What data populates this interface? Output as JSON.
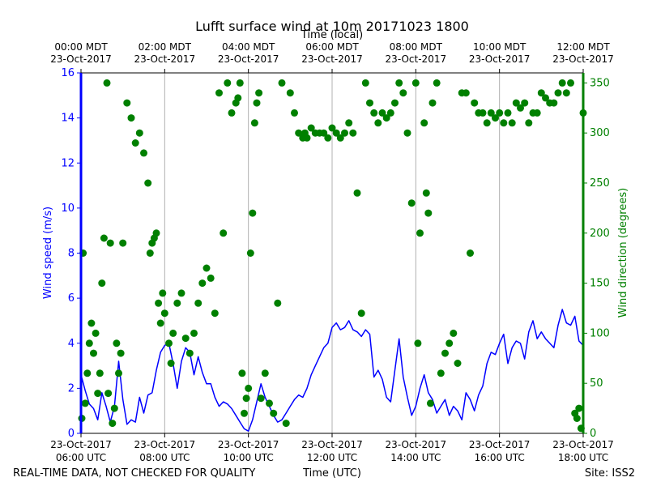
{
  "chart_data": {
    "type": "line",
    "title": "Lufft surface wind at 10m 20171023 1800",
    "top_axis_label": "Time (local)",
    "bottom_axis_label": "Time (UTC)",
    "left_axis_label": "Wind speed (m/s)",
    "right_axis_label": "Wind direction (degrees)",
    "footer_left": "REAL-TIME DATA, NOT CHECKED FOR QUALITY",
    "footer_right": "Site: ISS2",
    "x_range_hours_utc": [
      6,
      18
    ],
    "y_left_range": [
      0,
      16
    ],
    "y_right_range": [
      0,
      360
    ],
    "y_left_ticks": [
      "0",
      "2",
      "4",
      "6",
      "8",
      "10",
      "12",
      "14",
      "16"
    ],
    "y_right_ticks": [
      "0",
      "50",
      "100",
      "150",
      "200",
      "250",
      "300",
      "350"
    ],
    "bottom_ticks": [
      {
        "time": "06:00 UTC",
        "date": "23-Oct-2017"
      },
      {
        "time": "08:00 UTC",
        "date": "23-Oct-2017"
      },
      {
        "time": "10:00 UTC",
        "date": "23-Oct-2017"
      },
      {
        "time": "12:00 UTC",
        "date": "23-Oct-2017"
      },
      {
        "time": "14:00 UTC",
        "date": "23-Oct-2017"
      },
      {
        "time": "16:00 UTC",
        "date": "23-Oct-2017"
      },
      {
        "time": "18:00 UTC",
        "date": "23-Oct-2017"
      }
    ],
    "top_ticks": [
      {
        "time": "00:00 MDT",
        "date": "23-Oct-2017"
      },
      {
        "time": "02:00 MDT",
        "date": "23-Oct-2017"
      },
      {
        "time": "04:00 MDT",
        "date": "23-Oct-2017"
      },
      {
        "time": "06:00 MDT",
        "date": "23-Oct-2017"
      },
      {
        "time": "08:00 MDT",
        "date": "23-Oct-2017"
      },
      {
        "time": "10:00 MDT",
        "date": "23-Oct-2017"
      },
      {
        "time": "12:00 MDT",
        "date": "23-Oct-2017"
      }
    ],
    "colors": {
      "speed": "#0000ff",
      "direction": "#008000",
      "grid": "#b0b0b0"
    },
    "series": [
      {
        "name": "Wind speed (m/s)",
        "axis": "left",
        "x_hours": [
          6.0,
          6.1,
          6.2,
          6.3,
          6.4,
          6.5,
          6.6,
          6.7,
          6.8,
          6.9,
          7.0,
          7.1,
          7.2,
          7.3,
          7.4,
          7.5,
          7.6,
          7.7,
          7.8,
          7.9,
          8.0,
          8.1,
          8.2,
          8.3,
          8.4,
          8.5,
          8.6,
          8.7,
          8.8,
          8.9,
          9.0,
          9.1,
          9.2,
          9.3,
          9.4,
          9.5,
          9.6,
          9.7,
          9.8,
          9.9,
          10.0,
          10.1,
          10.2,
          10.3,
          10.4,
          10.5,
          10.6,
          10.7,
          10.8,
          10.9,
          11.0,
          11.1,
          11.2,
          11.3,
          11.4,
          11.5,
          11.6,
          11.7,
          11.8,
          11.9,
          12.0,
          12.1,
          12.2,
          12.3,
          12.4,
          12.5,
          12.6,
          12.7,
          12.8,
          12.9,
          13.0,
          13.1,
          13.2,
          13.3,
          13.4,
          13.5,
          13.6,
          13.7,
          13.8,
          13.9,
          14.0,
          14.1,
          14.2,
          14.3,
          14.4,
          14.5,
          14.6,
          14.7,
          14.8,
          14.9,
          15.0,
          15.1,
          15.2,
          15.3,
          15.4,
          15.5,
          15.6,
          15.7,
          15.8,
          15.9,
          16.0,
          16.1,
          16.2,
          16.3,
          16.4,
          16.5,
          16.6,
          16.7,
          16.8,
          16.9,
          17.0,
          17.1,
          17.2,
          17.3,
          17.4,
          17.5,
          17.6,
          17.7,
          17.8,
          17.9,
          18.0
        ],
        "values": [
          2.6,
          1.9,
          1.3,
          1.1,
          0.6,
          1.8,
          1.2,
          0.5,
          1.2,
          3.2,
          1.5,
          0.4,
          0.6,
          0.5,
          1.6,
          0.9,
          1.7,
          1.8,
          2.8,
          3.6,
          3.9,
          4.0,
          3.1,
          2.0,
          3.2,
          3.8,
          3.6,
          2.6,
          3.4,
          2.7,
          2.2,
          2.2,
          1.6,
          1.2,
          1.4,
          1.3,
          1.1,
          0.8,
          0.5,
          0.2,
          0.1,
          0.6,
          1.4,
          2.2,
          1.6,
          1.2,
          0.8,
          0.5,
          0.6,
          0.9,
          1.2,
          1.5,
          1.7,
          1.6,
          2.0,
          2.6,
          3.0,
          3.4,
          3.8,
          4.0,
          4.7,
          4.9,
          4.6,
          4.7,
          5.0,
          4.6,
          4.5,
          4.3,
          4.6,
          4.4,
          2.5,
          2.8,
          2.4,
          1.6,
          1.4,
          2.8,
          4.2,
          2.5,
          1.6,
          0.8,
          1.2,
          2.0,
          2.6,
          1.8,
          1.5,
          0.9,
          1.2,
          1.5,
          0.8,
          1.2,
          1.0,
          0.6,
          1.8,
          1.5,
          1.0,
          1.7,
          2.1,
          3.1,
          3.6,
          3.5,
          4.0,
          4.4,
          3.1,
          3.8,
          4.1,
          4.0,
          3.3,
          4.5,
          5.0,
          4.2,
          4.5,
          4.2,
          4.0,
          3.8,
          4.8,
          5.5,
          4.9,
          4.8,
          5.2,
          4.1,
          3.9
        ]
      },
      {
        "name": "Wind direction (degrees)",
        "axis": "right",
        "x_hours": [
          6.02,
          6.05,
          6.1,
          6.15,
          6.2,
          6.25,
          6.3,
          6.35,
          6.4,
          6.45,
          6.5,
          6.55,
          6.62,
          6.65,
          6.7,
          6.75,
          6.8,
          6.85,
          6.9,
          6.95,
          7.0,
          7.1,
          7.2,
          7.3,
          7.4,
          7.5,
          7.6,
          7.65,
          7.7,
          7.75,
          7.8,
          7.85,
          7.9,
          7.95,
          8.0,
          8.1,
          8.15,
          8.2,
          8.3,
          8.4,
          8.5,
          8.6,
          8.7,
          8.8,
          8.9,
          9.0,
          9.1,
          9.2,
          9.3,
          9.4,
          9.5,
          9.6,
          9.7,
          9.75,
          9.8,
          9.85,
          9.9,
          9.95,
          10.0,
          10.05,
          10.1,
          10.15,
          10.2,
          10.25,
          10.3,
          10.4,
          10.5,
          10.6,
          10.7,
          10.8,
          10.9,
          11.0,
          11.1,
          11.2,
          11.3,
          11.35,
          11.4,
          11.5,
          11.6,
          11.7,
          11.8,
          11.9,
          12.0,
          12.1,
          12.2,
          12.3,
          12.4,
          12.5,
          12.6,
          12.7,
          12.8,
          12.9,
          13.0,
          13.1,
          13.2,
          13.3,
          13.4,
          13.5,
          13.6,
          13.7,
          13.8,
          13.9,
          14.0,
          14.05,
          14.1,
          14.2,
          14.25,
          14.3,
          14.35,
          14.4,
          14.5,
          14.6,
          14.7,
          14.8,
          14.9,
          15.0,
          15.1,
          15.2,
          15.3,
          15.4,
          15.5,
          15.6,
          15.7,
          15.8,
          15.9,
          16.0,
          16.1,
          16.2,
          16.3,
          16.4,
          16.5,
          16.6,
          16.7,
          16.8,
          16.9,
          17.0,
          17.1,
          17.2,
          17.3,
          17.4,
          17.5,
          17.6,
          17.7,
          17.8,
          17.85,
          17.9,
          17.95,
          18.0
        ],
        "values": [
          15,
          180,
          30,
          60,
          90,
          110,
          80,
          100,
          40,
          60,
          150,
          195,
          350,
          40,
          190,
          10,
          25,
          90,
          60,
          80,
          190,
          330,
          315,
          290,
          300,
          280,
          250,
          180,
          190,
          195,
          200,
          130,
          110,
          140,
          120,
          90,
          70,
          100,
          130,
          140,
          95,
          80,
          100,
          130,
          150,
          165,
          155,
          120,
          340,
          200,
          350,
          320,
          330,
          335,
          350,
          60,
          20,
          35,
          45,
          180,
          220,
          310,
          330,
          340,
          35,
          60,
          30,
          20,
          130,
          350,
          10,
          340,
          320,
          300,
          295,
          300,
          295,
          305,
          300,
          300,
          300,
          295,
          305,
          300,
          295,
          300,
          310,
          300,
          240,
          120,
          350,
          330,
          320,
          310,
          320,
          315,
          320,
          330,
          350,
          340,
          300,
          230,
          350,
          90,
          200,
          310,
          240,
          220,
          30,
          330,
          350,
          60,
          80,
          90,
          100,
          70,
          340,
          340,
          180,
          330,
          320,
          320,
          310,
          320,
          315,
          320,
          310,
          320,
          310,
          330,
          325,
          330,
          310,
          320,
          320,
          340,
          335,
          330,
          330,
          340,
          350,
          340,
          350,
          20,
          15,
          25,
          5,
          320
        ]
      }
    ]
  }
}
